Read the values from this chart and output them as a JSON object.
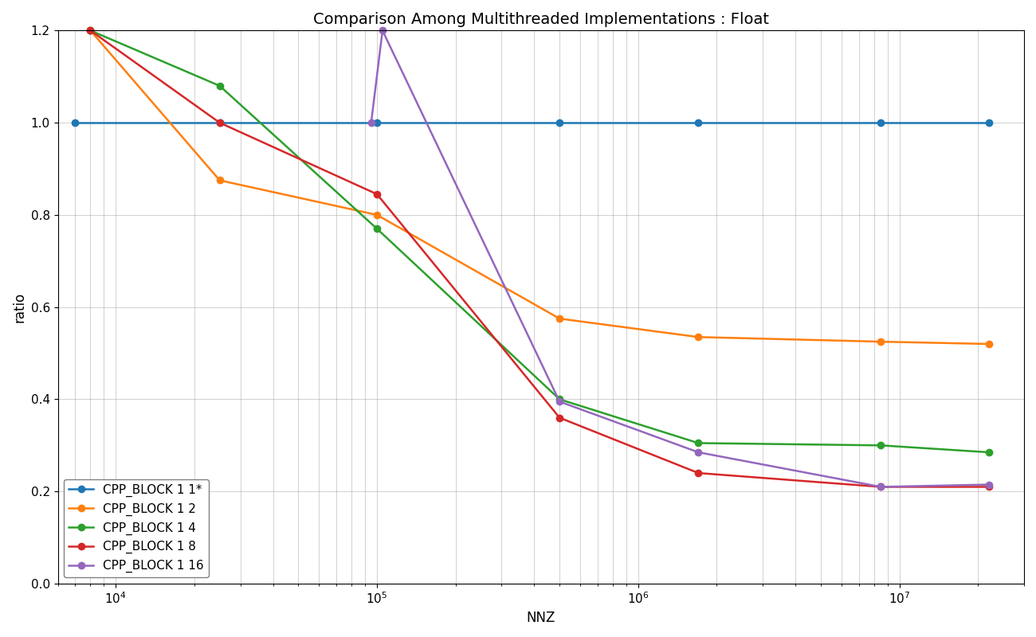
{
  "title": "Comparison Among Multithreaded Implementations : Float",
  "xlabel": "NNZ",
  "ylabel": "ratio",
  "xlim_log": [
    6000,
    30000000
  ],
  "ylim": [
    0.0,
    1.2
  ],
  "yticks": [
    0.0,
    0.2,
    0.4,
    0.6,
    0.8,
    1.0,
    1.2
  ],
  "series": [
    {
      "label": "CPP_BLOCK 1 1*",
      "color": "#1f77b4",
      "x": [
        7000,
        25000,
        100000,
        500000,
        1700000,
        8500000,
        22000000
      ],
      "y": [
        1.0,
        1.0,
        1.0,
        1.0,
        1.0,
        1.0,
        1.0
      ]
    },
    {
      "label": "CPP_BLOCK 1 2",
      "color": "#ff7f0e",
      "x": [
        8000,
        25000,
        100000,
        500000,
        1700000,
        8500000,
        22000000
      ],
      "y": [
        1.2,
        0.875,
        0.8,
        0.575,
        0.535,
        0.525,
        0.52
      ]
    },
    {
      "label": "CPP_BLOCK 1 4",
      "color": "#2ca02c",
      "x": [
        8000,
        25000,
        100000,
        500000,
        1700000,
        8500000,
        22000000
      ],
      "y": [
        1.2,
        1.08,
        0.77,
        0.4,
        0.305,
        0.3,
        0.285
      ]
    },
    {
      "label": "CPP_BLOCK 1 8",
      "color": "#d62728",
      "x": [
        8000,
        25000,
        100000,
        500000,
        1700000,
        8500000,
        22000000
      ],
      "y": [
        1.2,
        1.0,
        0.845,
        0.36,
        0.24,
        0.21,
        0.21
      ]
    },
    {
      "label": "CPP_BLOCK 1 16",
      "color": "#9467bd",
      "x": [
        95000,
        105000,
        500000,
        1700000,
        8500000,
        22000000
      ],
      "y": [
        1.0,
        1.2,
        0.395,
        0.285,
        0.21,
        0.215
      ]
    }
  ],
  "figsize": [
    13.0,
    8.0
  ],
  "dpi": 100,
  "background_color": "#ffffff",
  "title_fontsize": 14,
  "axis_label_fontsize": 12,
  "tick_fontsize": 11,
  "legend_fontsize": 11
}
